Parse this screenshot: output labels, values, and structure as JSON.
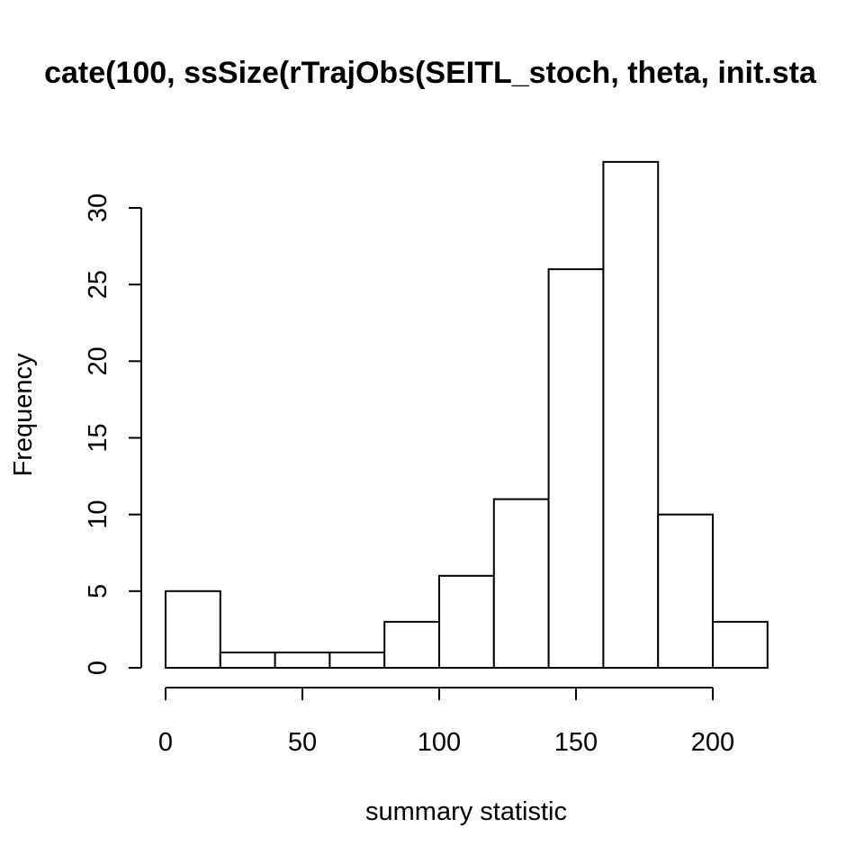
{
  "chart_data": {
    "type": "bar",
    "title": "cate(100, ssSize(rTrajObs(SEITL_stoch, theta, init.sta",
    "xlabel": "summary statistic",
    "ylabel": "Frequency",
    "bins": [
      {
        "from": 0,
        "to": 20,
        "count": 5
      },
      {
        "from": 20,
        "to": 40,
        "count": 1
      },
      {
        "from": 40,
        "to": 60,
        "count": 1
      },
      {
        "from": 60,
        "to": 80,
        "count": 1
      },
      {
        "from": 80,
        "to": 100,
        "count": 3
      },
      {
        "from": 100,
        "to": 120,
        "count": 6
      },
      {
        "from": 120,
        "to": 140,
        "count": 11
      },
      {
        "from": 140,
        "to": 160,
        "count": 26
      },
      {
        "from": 160,
        "to": 180,
        "count": 33
      },
      {
        "from": 180,
        "to": 200,
        "count": 10
      },
      {
        "from": 200,
        "to": 220,
        "count": 3
      }
    ],
    "x_ticks": [
      0,
      50,
      100,
      150,
      200
    ],
    "y_ticks": [
      0,
      5,
      10,
      15,
      20,
      25,
      30
    ],
    "xlim": [
      0,
      220
    ],
    "ylim": [
      0,
      33
    ],
    "grid": false,
    "bar_fill": "#ffffff",
    "bar_stroke": "#000000"
  }
}
